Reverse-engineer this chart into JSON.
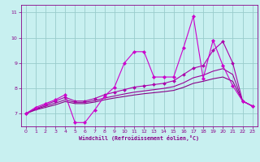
{
  "xlabel": "Windchill (Refroidissement éolien,°C)",
  "bg_color": "#c8f0f0",
  "grid_color": "#aadddd",
  "line_color1": "#cc00cc",
  "line_color2": "#880088",
  "x_min": -0.5,
  "x_max": 23.5,
  "y_min": 6.5,
  "y_max": 11.3,
  "yticks": [
    7,
    8,
    9,
    10,
    11
  ],
  "xticks": [
    0,
    1,
    2,
    3,
    4,
    5,
    6,
    7,
    8,
    9,
    10,
    11,
    12,
    13,
    14,
    15,
    16,
    17,
    18,
    19,
    20,
    21,
    22,
    23
  ],
  "series1_x": [
    0,
    1,
    2,
    3,
    4,
    5,
    6,
    7,
    8,
    9,
    10,
    11,
    12,
    13,
    14,
    15,
    16,
    17,
    18,
    19,
    20,
    21,
    22,
    23
  ],
  "series1_y": [
    7.0,
    7.25,
    7.4,
    7.55,
    7.75,
    6.65,
    6.65,
    7.15,
    7.7,
    8.05,
    9.0,
    9.45,
    9.45,
    8.45,
    8.45,
    8.45,
    9.6,
    10.85,
    8.4,
    9.9,
    8.9,
    8.1,
    7.5,
    7.3
  ],
  "series2_x": [
    0,
    1,
    2,
    3,
    4,
    5,
    6,
    7,
    8,
    9,
    10,
    11,
    12,
    13,
    14,
    15,
    16,
    17,
    18,
    19,
    20,
    21,
    22,
    23
  ],
  "series2_y": [
    7.0,
    7.2,
    7.35,
    7.5,
    7.65,
    7.5,
    7.5,
    7.6,
    7.75,
    7.85,
    7.95,
    8.05,
    8.1,
    8.15,
    8.2,
    8.3,
    8.55,
    8.8,
    8.9,
    9.5,
    9.85,
    9.0,
    7.5,
    7.3
  ],
  "series3_x": [
    0,
    1,
    2,
    3,
    4,
    5,
    6,
    7,
    8,
    9,
    10,
    11,
    12,
    13,
    14,
    15,
    16,
    17,
    18,
    19,
    20,
    21,
    22,
    23
  ],
  "series3_y": [
    7.0,
    7.18,
    7.3,
    7.42,
    7.55,
    7.45,
    7.45,
    7.52,
    7.62,
    7.7,
    7.78,
    7.85,
    7.9,
    7.95,
    8.0,
    8.07,
    8.22,
    8.42,
    8.52,
    8.68,
    8.78,
    8.55,
    7.5,
    7.3
  ],
  "series4_x": [
    0,
    1,
    2,
    3,
    4,
    5,
    6,
    7,
    8,
    9,
    10,
    11,
    12,
    13,
    14,
    15,
    16,
    17,
    18,
    19,
    20,
    21,
    22,
    23
  ],
  "series4_y": [
    7.0,
    7.15,
    7.25,
    7.35,
    7.48,
    7.4,
    7.4,
    7.46,
    7.55,
    7.62,
    7.68,
    7.74,
    7.79,
    7.83,
    7.87,
    7.92,
    8.04,
    8.2,
    8.28,
    8.38,
    8.45,
    8.28,
    7.5,
    7.3
  ]
}
